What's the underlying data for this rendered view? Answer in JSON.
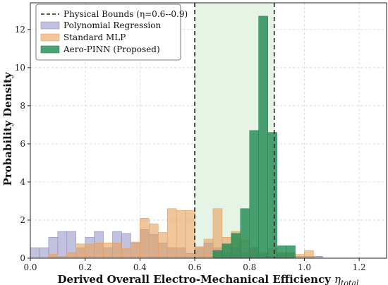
{
  "chart_data": {
    "type": "bar",
    "subtype": "overlapping histogram",
    "xlabel": "Derived Overall Electro-Mechanical Efficiency",
    "xlabel_symbol": "η",
    "xlabel_subscript": "total",
    "ylabel": "Probability Density",
    "xlim": [
      0.0,
      1.3
    ],
    "ylim": [
      0,
      13.4
    ],
    "xticks": [
      0.0,
      0.2,
      0.4,
      0.6,
      0.8,
      1.0,
      1.2
    ],
    "xtick_labels": [
      "0.0",
      "0.2",
      "0.4",
      "0.6",
      "0.8",
      "1.0",
      "1.2"
    ],
    "yticks": [
      0,
      2,
      4,
      6,
      8,
      10,
      12
    ],
    "ytick_labels": [
      "0",
      "2",
      "4",
      "6",
      "8",
      "10",
      "12"
    ],
    "grid": true,
    "legend_position": "top-left",
    "bounds": {
      "label": "Physical Bounds (η=0.6--0.9)",
      "lower": 0.6,
      "upper": 0.89,
      "line_color": "#222222",
      "shade_color": "#e6f4e6"
    },
    "series": [
      {
        "name": "Polynomial Regression",
        "color": "#8f8fc2",
        "opacity": 0.55,
        "bin_width": 0.0333,
        "bins": [
          [
            0.0,
            0.55
          ],
          [
            0.0333,
            0.55
          ],
          [
            0.0667,
            1.1
          ],
          [
            0.1,
            1.4
          ],
          [
            0.1333,
            1.4
          ],
          [
            0.1667,
            0.55
          ],
          [
            0.2,
            1.1
          ],
          [
            0.2333,
            1.4
          ],
          [
            0.2667,
            0.55
          ],
          [
            0.3,
            1.4
          ],
          [
            0.3333,
            1.3
          ],
          [
            0.3667,
            0.8
          ],
          [
            0.4,
            1.5
          ],
          [
            0.4333,
            1.25
          ],
          [
            0.4667,
            0.8
          ],
          [
            0.5,
            0.55
          ],
          [
            0.5333,
            0.55
          ],
          [
            0.5667,
            0.25
          ],
          [
            0.6,
            0.55
          ],
          [
            0.6333,
            0.8
          ],
          [
            0.6667,
            0.55
          ],
          [
            0.7,
            0.3
          ],
          [
            0.7333,
            0.55
          ],
          [
            0.7667,
            0.3
          ],
          [
            0.8,
            0.55
          ],
          [
            0.8333,
            0.25
          ],
          [
            0.8667,
            0.1
          ],
          [
            0.9,
            0.25
          ],
          [
            0.9333,
            0.25
          ],
          [
            0.9667,
            0.1
          ],
          [
            1.0,
            0.1
          ],
          [
            1.0333,
            0.1
          ]
        ]
      },
      {
        "name": "Standard MLP",
        "color": "#e6a05a",
        "opacity": 0.6,
        "bin_width": 0.0333,
        "bins": [
          [
            0.0667,
            0.2
          ],
          [
            0.1,
            0.1
          ],
          [
            0.1333,
            0.3
          ],
          [
            0.1667,
            0.75
          ],
          [
            0.2,
            0.75
          ],
          [
            0.2333,
            0.8
          ],
          [
            0.2667,
            0.8
          ],
          [
            0.3,
            0.8
          ],
          [
            0.3333,
            0.5
          ],
          [
            0.3667,
            0.85
          ],
          [
            0.4,
            2.1
          ],
          [
            0.4333,
            1.8
          ],
          [
            0.4667,
            1.35
          ],
          [
            0.5,
            2.6
          ],
          [
            0.5333,
            2.5
          ],
          [
            0.5667,
            2.5
          ],
          [
            0.6,
            0.6
          ],
          [
            0.6333,
            1.0
          ],
          [
            0.6667,
            2.6
          ],
          [
            0.7,
            1.1
          ],
          [
            0.7333,
            1.4
          ],
          [
            0.7667,
            0.95
          ],
          [
            0.8,
            0.55
          ],
          [
            0.8333,
            0.3
          ],
          [
            0.8667,
            0.5
          ],
          [
            0.9,
            0.3
          ],
          [
            0.9333,
            0.3
          ],
          [
            0.9667,
            0.2
          ],
          [
            1.0,
            0.4
          ]
        ]
      },
      {
        "name": "Aero-PINN (Proposed)",
        "color": "#1f8a52",
        "opacity": 0.8,
        "bin_width": 0.0333,
        "bins": [
          [
            0.6667,
            0.4
          ],
          [
            0.7,
            0.75
          ],
          [
            0.7333,
            1.3
          ],
          [
            0.7667,
            2.6
          ],
          [
            0.8,
            6.7
          ],
          [
            0.8333,
            12.7
          ],
          [
            0.8667,
            6.6
          ],
          [
            0.9,
            0.65
          ],
          [
            0.9333,
            0.65
          ]
        ]
      }
    ]
  }
}
